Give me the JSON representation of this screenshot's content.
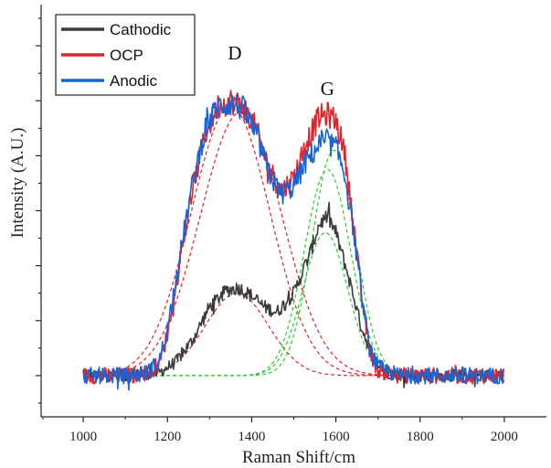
{
  "chart_data": {
    "type": "line",
    "xlabel": "Raman Shift/cm",
    "ylabel": "Intensity (A.U.)",
    "xlim": [
      900,
      2100
    ],
    "ylim": [
      -0.15,
      1.35
    ],
    "x_ticks": [
      1000,
      1200,
      1400,
      1600,
      1800,
      2000
    ],
    "x_tick_labels": [
      "1000",
      "1200",
      "1400",
      "1600",
      "1800",
      "2000"
    ],
    "y_tick_labels_shown": false,
    "grid": false,
    "legend_position": "top-left",
    "annotations": [
      {
        "text": "D",
        "x": 1360,
        "y": 1.15
      },
      {
        "text": "G",
        "x": 1580,
        "y": 1.02
      }
    ],
    "series": [
      {
        "name": "Cathodic",
        "color": "#3c3c3c",
        "x": [
          1000,
          1100,
          1180,
          1220,
          1260,
          1300,
          1340,
          1370,
          1400,
          1430,
          1460,
          1500,
          1540,
          1560,
          1580,
          1600,
          1630,
          1660,
          1690,
          1720,
          1800,
          1900,
          2000
        ],
        "y": [
          0.0,
          0.0,
          0.01,
          0.05,
          0.13,
          0.25,
          0.31,
          0.32,
          0.29,
          0.25,
          0.23,
          0.3,
          0.45,
          0.55,
          0.58,
          0.52,
          0.36,
          0.18,
          0.06,
          0.01,
          0.0,
          0.0,
          0.0
        ]
      },
      {
        "name": "OCP",
        "color": "#e0242b",
        "x": [
          1000,
          1100,
          1150,
          1180,
          1200,
          1230,
          1260,
          1290,
          1320,
          1350,
          1380,
          1410,
          1440,
          1470,
          1500,
          1530,
          1560,
          1580,
          1600,
          1620,
          1640,
          1660,
          1680,
          1700,
          1750,
          1800,
          1900,
          2000
        ],
        "y": [
          0.0,
          0.0,
          0.01,
          0.04,
          0.15,
          0.42,
          0.68,
          0.88,
          0.98,
          1.0,
          0.98,
          0.9,
          0.76,
          0.67,
          0.72,
          0.85,
          0.94,
          0.95,
          0.93,
          0.82,
          0.58,
          0.3,
          0.09,
          0.02,
          0.0,
          0.0,
          0.0,
          0.0
        ]
      },
      {
        "name": "Anodic",
        "color": "#1565d8",
        "x": [
          1000,
          1100,
          1150,
          1180,
          1200,
          1230,
          1260,
          1290,
          1320,
          1350,
          1380,
          1410,
          1440,
          1470,
          1500,
          1530,
          1560,
          1580,
          1600,
          1620,
          1640,
          1660,
          1680,
          1700,
          1750,
          1800,
          1900,
          2000
        ],
        "y": [
          0.0,
          0.0,
          0.01,
          0.05,
          0.17,
          0.44,
          0.7,
          0.9,
          0.98,
          0.99,
          0.97,
          0.88,
          0.74,
          0.66,
          0.69,
          0.78,
          0.84,
          0.85,
          0.83,
          0.74,
          0.55,
          0.3,
          0.1,
          0.03,
          0.0,
          0.0,
          0.0,
          0.0
        ]
      }
    ],
    "fit_curves": [
      {
        "color": "#e0242b",
        "center": 1350,
        "width": 150,
        "amplitude": 0.98
      },
      {
        "color": "#e0242b",
        "center": 1375,
        "width": 155,
        "amplitude": 0.96
      },
      {
        "color": "#e0242b",
        "center": 1365,
        "width": 120,
        "amplitude": 0.3
      },
      {
        "color": "#2ecc2e",
        "center": 1595,
        "width": 82,
        "amplitude": 0.82
      },
      {
        "color": "#2ecc2e",
        "center": 1580,
        "width": 88,
        "amplitude": 0.75
      },
      {
        "color": "#2ecc2e",
        "center": 1575,
        "width": 85,
        "amplitude": 0.52
      }
    ]
  }
}
